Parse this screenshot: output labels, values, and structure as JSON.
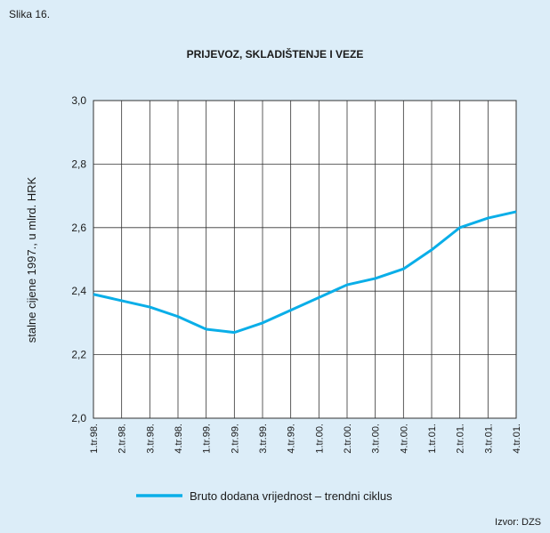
{
  "chart_data": {
    "type": "line",
    "figure_label": "Slika 16.",
    "title": "PRIJEVOZ, SKLADIŠTENJE I VEZE",
    "y_label": "stalne cijene 1997., u mlrd. HRK",
    "source": "Izvor: DZS",
    "categories": [
      "1.tr.98.",
      "2.tr.98.",
      "3.tr.98.",
      "4.tr.98.",
      "1.tr.99.",
      "2.tr.99.",
      "3.tr.99.",
      "4.tr.99.",
      "1.tr.00.",
      "2.tr.00.",
      "3.tr.00.",
      "4.tr.00.",
      "1.tr.01.",
      "2.tr.01.",
      "3.tr.01.",
      "4.tr.01."
    ],
    "series": [
      {
        "name": "Bruto dodana vrijednost – trendni ciklus",
        "color": "#0aaee8",
        "values": [
          2.39,
          2.37,
          2.35,
          2.32,
          2.28,
          2.27,
          2.3,
          2.34,
          2.38,
          2.42,
          2.44,
          2.47,
          2.53,
          2.6,
          2.63,
          2.65
        ]
      }
    ],
    "ylim": [
      2.0,
      3.0
    ],
    "yticks": [
      {
        "value": 2.0,
        "label": "2,0"
      },
      {
        "value": 2.2,
        "label": "2,2"
      },
      {
        "value": 2.4,
        "label": "2,4"
      },
      {
        "value": 2.6,
        "label": "2,6"
      },
      {
        "value": 2.8,
        "label": "2,8"
      },
      {
        "value": 3.0,
        "label": "3,0"
      }
    ],
    "grid": true,
    "legend": "bottom"
  }
}
